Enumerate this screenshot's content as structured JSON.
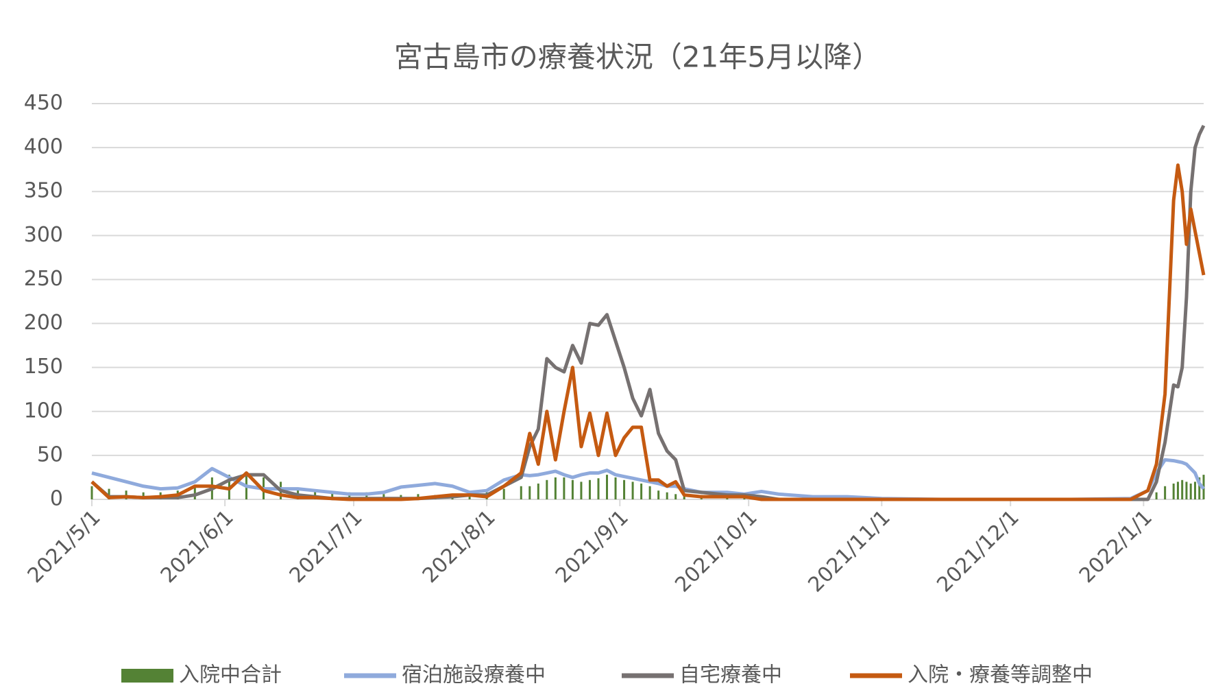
{
  "chart_data": {
    "type": "line",
    "title": "宮古島市の療養状況（21年5月以降）",
    "x": [
      "2021/5/1",
      "2021/5/5",
      "2021/5/9",
      "2021/5/13",
      "2021/5/17",
      "2021/5/21",
      "2021/5/25",
      "2021/5/29",
      "2021/6/2",
      "2021/6/6",
      "2021/6/10",
      "2021/6/14",
      "2021/6/18",
      "2021/6/22",
      "2021/6/26",
      "2021/6/30",
      "2021/7/4",
      "2021/7/8",
      "2021/7/12",
      "2021/7/16",
      "2021/7/20",
      "2021/7/24",
      "2021/7/28",
      "2021/8/1",
      "2021/8/5",
      "2021/8/9",
      "2021/8/11",
      "2021/8/13",
      "2021/8/15",
      "2021/8/17",
      "2021/8/19",
      "2021/8/21",
      "2021/8/23",
      "2021/8/25",
      "2021/8/27",
      "2021/8/29",
      "2021/8/31",
      "2021/9/2",
      "2021/9/4",
      "2021/9/6",
      "2021/9/8",
      "2021/9/10",
      "2021/9/12",
      "2021/9/14",
      "2021/9/16",
      "2021/9/20",
      "2021/9/26",
      "2021/9/30",
      "2021/10/4",
      "2021/10/8",
      "2021/10/16",
      "2021/10/24",
      "2021/11/1",
      "2021/11/15",
      "2021/12/1",
      "2021/12/15",
      "2021/12/29",
      "2022/1/2",
      "2022/1/4",
      "2022/1/6",
      "2022/1/8",
      "2022/1/9",
      "2022/1/10",
      "2022/1/11",
      "2022/1/12",
      "2022/1/13",
      "2022/1/14",
      "2022/1/15"
    ],
    "series": [
      {
        "name": "入院中合計",
        "type": "bar",
        "color": "#548235",
        "values": [
          15,
          12,
          10,
          8,
          8,
          10,
          15,
          25,
          28,
          30,
          25,
          20,
          12,
          10,
          8,
          8,
          8,
          6,
          5,
          6,
          5,
          5,
          6,
          8,
          12,
          15,
          15,
          18,
          22,
          25,
          25,
          22,
          20,
          22,
          24,
          28,
          25,
          22,
          20,
          18,
          15,
          10,
          8,
          6,
          5,
          5,
          5,
          4,
          4,
          2,
          1,
          1,
          0,
          0,
          0,
          0,
          0,
          2,
          8,
          15,
          18,
          20,
          22,
          20,
          18,
          20,
          25,
          28
        ]
      },
      {
        "name": "宿泊施設療養中",
        "type": "line",
        "color": "#8faadc",
        "values": [
          30,
          25,
          20,
          15,
          12,
          13,
          20,
          35,
          25,
          15,
          12,
          12,
          12,
          10,
          8,
          6,
          6,
          8,
          14,
          16,
          18,
          15,
          8,
          10,
          22,
          28,
          27,
          28,
          30,
          32,
          28,
          25,
          28,
          30,
          30,
          33,
          28,
          26,
          24,
          22,
          20,
          18,
          15,
          15,
          12,
          8,
          8,
          6,
          9,
          6,
          3,
          3,
          1,
          0,
          0,
          0,
          1,
          10,
          30,
          45,
          44,
          43,
          42,
          40,
          35,
          30,
          18,
          12
        ]
      },
      {
        "name": "自宅療養中",
        "type": "line",
        "color": "#767171",
        "values": [
          20,
          3,
          3,
          2,
          2,
          2,
          5,
          12,
          22,
          28,
          28,
          10,
          5,
          3,
          1,
          1,
          1,
          1,
          1,
          1,
          2,
          3,
          5,
          5,
          15,
          25,
          60,
          80,
          160,
          150,
          145,
          175,
          155,
          200,
          198,
          210,
          180,
          150,
          115,
          95,
          125,
          75,
          55,
          45,
          10,
          8,
          5,
          5,
          3,
          0,
          0,
          0,
          0,
          0,
          0,
          0,
          0,
          0,
          20,
          65,
          130,
          128,
          150,
          230,
          350,
          400,
          415,
          425
        ]
      },
      {
        "name": "入院・療養等調整中",
        "type": "line",
        "color": "#c55a11",
        "values": [
          20,
          2,
          3,
          2,
          3,
          5,
          15,
          15,
          12,
          30,
          10,
          5,
          2,
          2,
          1,
          0,
          0,
          0,
          0,
          1,
          3,
          5,
          5,
          3,
          15,
          30,
          75,
          40,
          100,
          45,
          100,
          150,
          60,
          98,
          50,
          98,
          50,
          70,
          82,
          82,
          22,
          22,
          15,
          20,
          5,
          3,
          3,
          3,
          0,
          0,
          0,
          0,
          0,
          0,
          0,
          0,
          0,
          10,
          40,
          120,
          340,
          380,
          350,
          290,
          330,
          305,
          280,
          255
        ]
      }
    ],
    "xlim": [
      "2021/5/1",
      "2022/1/15"
    ],
    "xticks": [
      "2021/5/1",
      "2021/6/1",
      "2021/7/1",
      "2021/8/1",
      "2021/9/1",
      "2021/10/1",
      "2021/11/1",
      "2021/12/1",
      "2022/1/1"
    ],
    "ylim": [
      0,
      450
    ],
    "yticks": [
      0,
      50,
      100,
      150,
      200,
      250,
      300,
      350,
      400,
      450
    ],
    "grid": true,
    "legend": "bottom"
  }
}
